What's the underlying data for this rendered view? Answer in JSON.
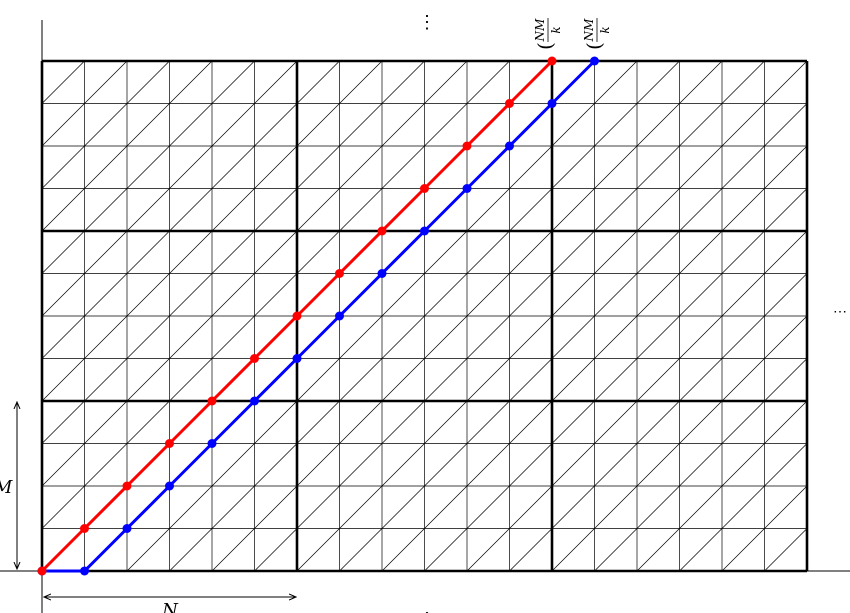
{
  "labels": {
    "top_dots": "⋮",
    "bottom_dot": ".",
    "right_dots": "⋯",
    "n": "N",
    "m": "M",
    "endpoint_red": {
      "open": "(",
      "num": "NM",
      "den": "k"
    },
    "endpoint_blue": {
      "open": "(",
      "num": "NM",
      "den": "k"
    }
  }
}
